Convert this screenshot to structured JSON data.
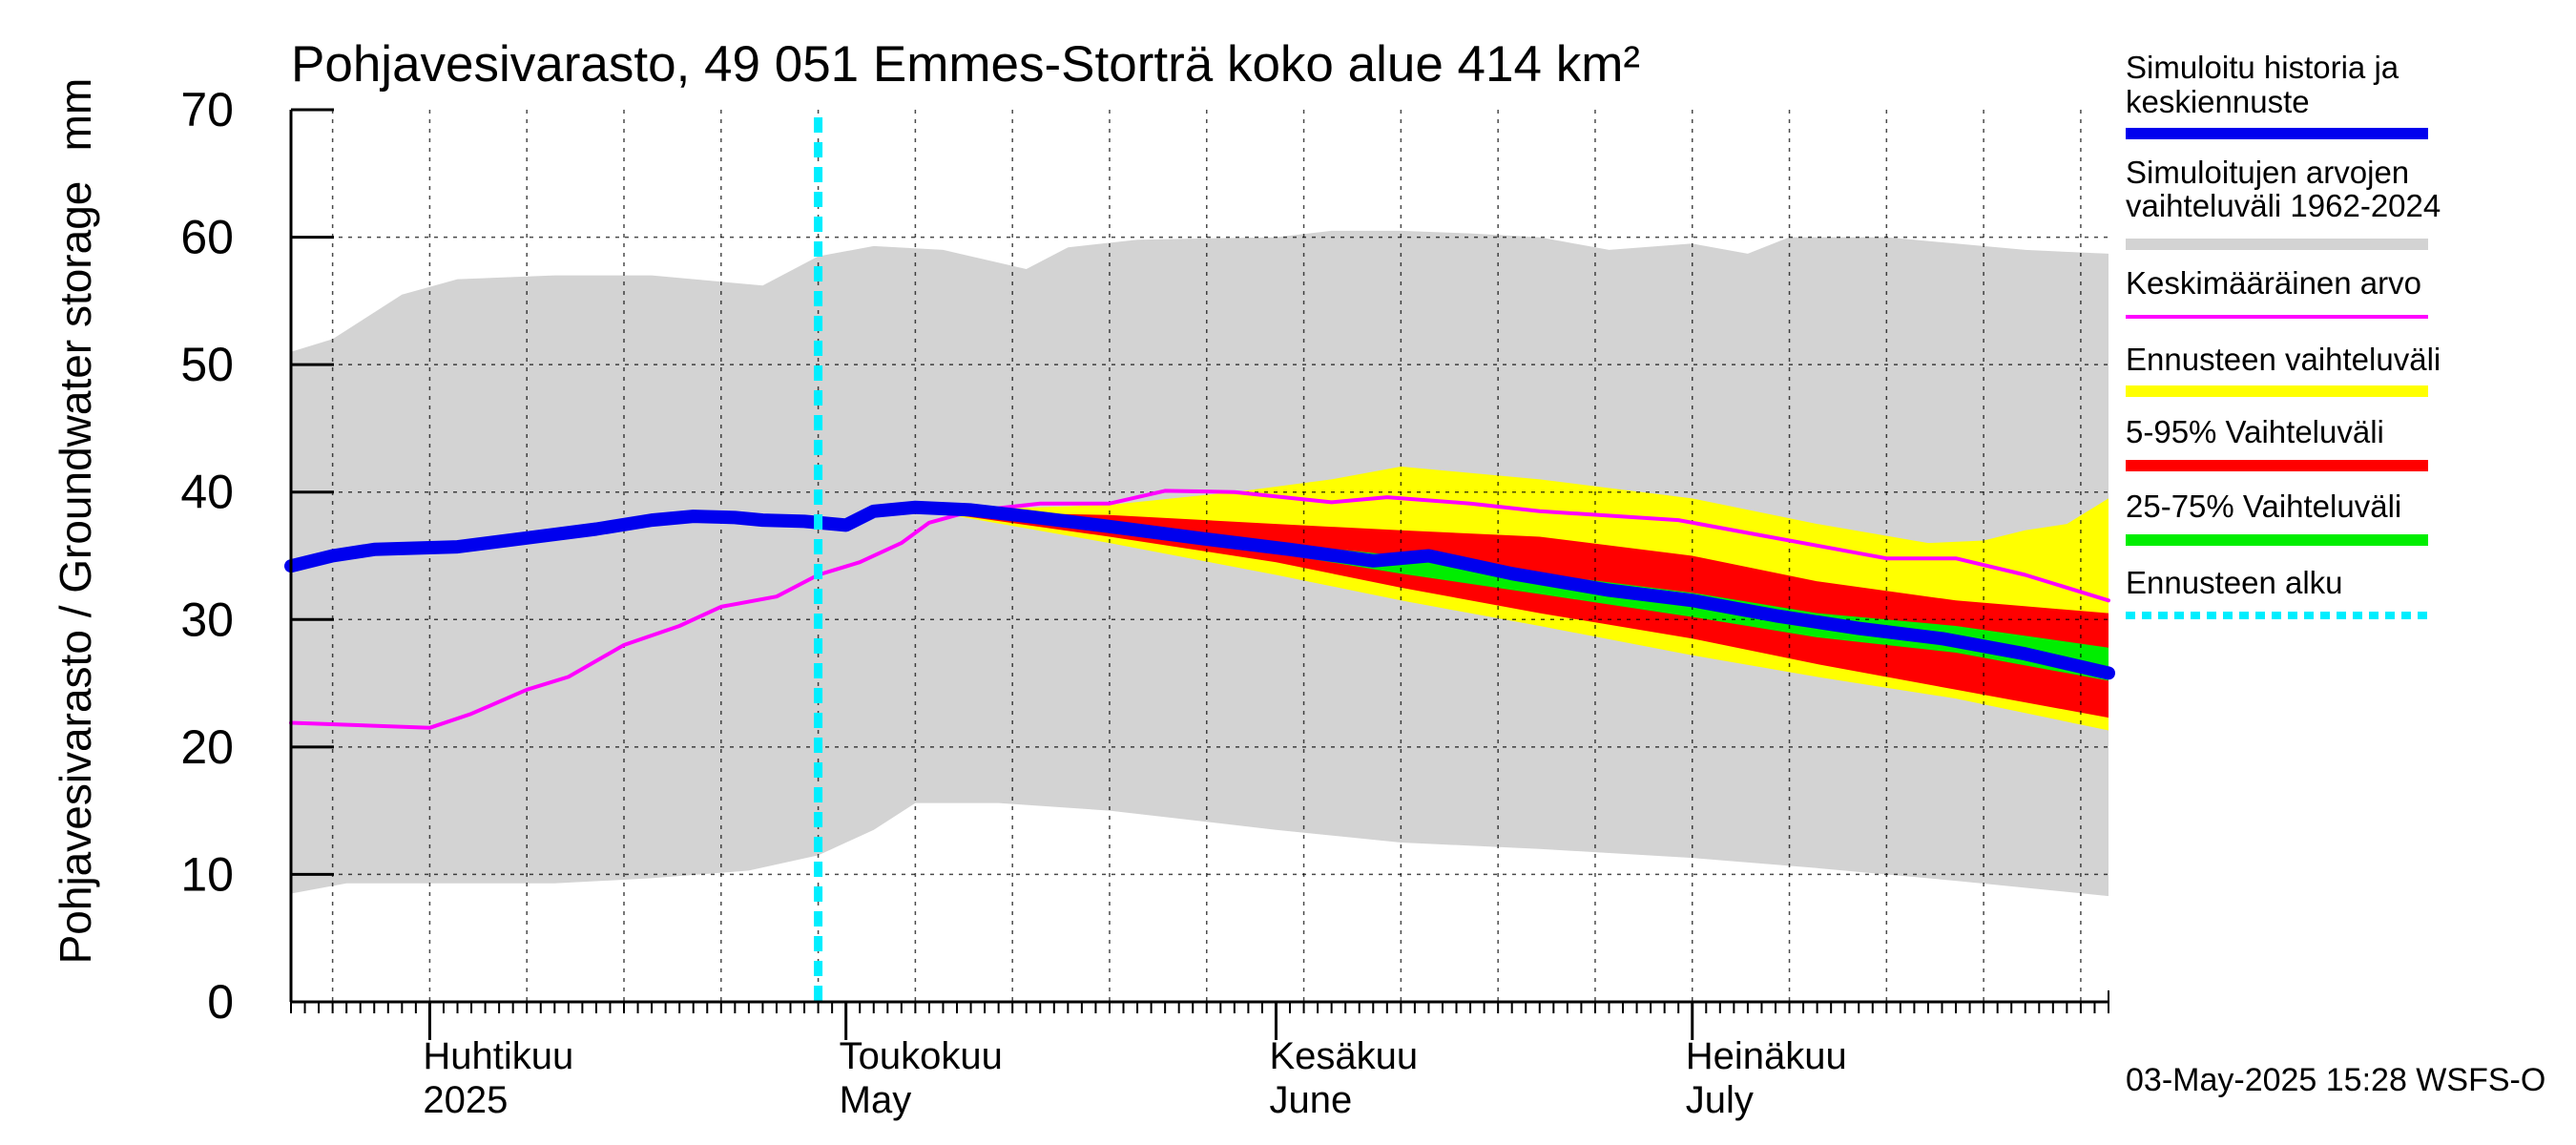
{
  "title": "Pohjavesivarasto, 49 051 Emmes-Storträ koko alue 414 km²",
  "unit_label": "mm",
  "ylabel": "Pohjavesivarasto / Groundwater storage",
  "timestamp": "03-May-2025 15:28 WSFS-O",
  "colors": {
    "history": "#0000ee",
    "range": "#d3d3d3",
    "mean": "#ff00ff",
    "forecast_range": "#ffff00",
    "p5_95": "#ff0000",
    "p25_75": "#00ee00",
    "forecast_start": "#00eeff"
  },
  "legend": [
    {
      "id": "history",
      "label": "Simuloitu historia ja keskiennuste",
      "lines": [
        "Simuloitu historia ja",
        "keskiennuste"
      ],
      "color": "#0000ee"
    },
    {
      "id": "range",
      "label": "Simuloitujen arvojen vaihteluväli 1962-2024",
      "lines": [
        "Simuloitujen arvojen",
        "vaihteluväli 1962-2024"
      ],
      "color": "#d3d3d3"
    },
    {
      "id": "mean",
      "label": "Keskimääräinen arvo",
      "lines": [
        "Keskimääräinen arvo"
      ],
      "color": "#ff00ff"
    },
    {
      "id": "forecast_range",
      "label": "Ennusteen vaihteluväli",
      "lines": [
        "Ennusteen vaihteluväli"
      ],
      "color": "#ffff00"
    },
    {
      "id": "p5_95",
      "label": "5-95% Vaihteluväli",
      "lines": [
        "5-95% Vaihteluväli"
      ],
      "color": "#ff0000"
    },
    {
      "id": "p25_75",
      "label": "25-75% Vaihteluväli",
      "lines": [
        "25-75% Vaihteluväli"
      ],
      "color": "#00ee00"
    },
    {
      "id": "forecast_start",
      "label": "Ennusteen alku",
      "lines": [
        "Ennusteen alku"
      ],
      "color": "#00eeff"
    }
  ],
  "chart_data": {
    "type": "area",
    "title": "Pohjavesivarasto, 49 051 Emmes-Storträ koko alue 414 km²",
    "ylabel": "Pohjavesivarasto / Groundwater storage",
    "unit": "mm",
    "ylim": [
      0,
      70
    ],
    "yticks": [
      0,
      10,
      20,
      30,
      40,
      50,
      60,
      70
    ],
    "xlim": [
      "2025-03-22",
      "2025-07-31"
    ],
    "grid": true,
    "legend_position": "right",
    "month_labels": [
      {
        "date": "2025-04-01",
        "fi": "Huhtikuu",
        "en": "2025"
      },
      {
        "date": "2025-05-01",
        "fi": "Toukokuu",
        "en": "May"
      },
      {
        "date": "2025-06-01",
        "fi": "Kesäkuu",
        "en": "June"
      },
      {
        "date": "2025-07-01",
        "fi": "Heinäkuu",
        "en": "July"
      }
    ],
    "forecast_start": "2025-04-29",
    "range_upper": [
      [
        "2025-03-22",
        51
      ],
      [
        "2025-03-25",
        52
      ],
      [
        "2025-03-30",
        55.5
      ],
      [
        "2025-04-03",
        56.7
      ],
      [
        "2025-04-10",
        57
      ],
      [
        "2025-04-17",
        57
      ],
      [
        "2025-04-22",
        56.5
      ],
      [
        "2025-04-25",
        56.2
      ],
      [
        "2025-04-29",
        58.5
      ],
      [
        "2025-05-03",
        59.3
      ],
      [
        "2025-05-08",
        59
      ],
      [
        "2025-05-14",
        57.5
      ],
      [
        "2025-05-17",
        59.2
      ],
      [
        "2025-05-22",
        59.8
      ],
      [
        "2025-06-01",
        60
      ],
      [
        "2025-06-05",
        60.5
      ],
      [
        "2025-06-10",
        60.5
      ],
      [
        "2025-06-15",
        60.3
      ],
      [
        "2025-06-20",
        60
      ],
      [
        "2025-06-25",
        59
      ],
      [
        "2025-07-01",
        59.5
      ],
      [
        "2025-07-05",
        58.7
      ],
      [
        "2025-07-08",
        60
      ],
      [
        "2025-07-15",
        60
      ],
      [
        "2025-07-20",
        59.5
      ],
      [
        "2025-07-25",
        59
      ],
      [
        "2025-07-31",
        58.7
      ]
    ],
    "range_lower": [
      [
        "2025-03-22",
        8.5
      ],
      [
        "2025-03-26",
        9.3
      ],
      [
        "2025-04-01",
        9.3
      ],
      [
        "2025-04-10",
        9.3
      ],
      [
        "2025-04-17",
        9.7
      ],
      [
        "2025-04-24",
        10.3
      ],
      [
        "2025-04-29",
        11.5
      ],
      [
        "2025-05-03",
        13.5
      ],
      [
        "2025-05-06",
        15.6
      ],
      [
        "2025-05-12",
        15.6
      ],
      [
        "2025-05-20",
        15
      ],
      [
        "2025-06-01",
        13.5
      ],
      [
        "2025-06-10",
        12.5
      ],
      [
        "2025-06-20",
        12
      ],
      [
        "2025-07-01",
        11.3
      ],
      [
        "2025-07-10",
        10.5
      ],
      [
        "2025-07-20",
        9.5
      ],
      [
        "2025-07-31",
        8.3
      ]
    ],
    "history": [
      [
        "2025-03-22",
        34.2
      ],
      [
        "2025-03-25",
        35
      ],
      [
        "2025-03-28",
        35.5
      ],
      [
        "2025-04-03",
        35.7
      ],
      [
        "2025-04-08",
        36.4
      ],
      [
        "2025-04-13",
        37.1
      ],
      [
        "2025-04-17",
        37.8
      ],
      [
        "2025-04-20",
        38.1
      ],
      [
        "2025-04-23",
        38
      ],
      [
        "2025-04-25",
        37.8
      ],
      [
        "2025-04-28",
        37.7
      ],
      [
        "2025-05-01",
        37.4
      ],
      [
        "2025-05-03",
        38.5
      ],
      [
        "2025-05-06",
        38.8
      ],
      [
        "2025-05-10",
        38.6
      ],
      [
        "2025-05-14",
        38.1
      ],
      [
        "2025-05-20",
        37.3
      ],
      [
        "2025-05-27",
        36.3
      ],
      [
        "2025-06-02",
        35.5
      ],
      [
        "2025-06-08",
        34.6
      ],
      [
        "2025-06-12",
        35
      ],
      [
        "2025-06-18",
        33.6
      ],
      [
        "2025-06-25",
        32.3
      ],
      [
        "2025-07-01",
        31.5
      ],
      [
        "2025-07-07",
        30.3
      ],
      [
        "2025-07-13",
        29.3
      ],
      [
        "2025-07-19",
        28.5
      ],
      [
        "2025-07-25",
        27.3
      ],
      [
        "2025-07-31",
        25.8
      ]
    ],
    "mean": [
      [
        "2025-03-22",
        21.9
      ],
      [
        "2025-04-01",
        21.5
      ],
      [
        "2025-04-04",
        22.6
      ],
      [
        "2025-04-08",
        24.5
      ],
      [
        "2025-04-11",
        25.5
      ],
      [
        "2025-04-15",
        28
      ],
      [
        "2025-04-19",
        29.5
      ],
      [
        "2025-04-22",
        31
      ],
      [
        "2025-04-26",
        31.8
      ],
      [
        "2025-04-29",
        33.5
      ],
      [
        "2025-05-02",
        34.5
      ],
      [
        "2025-05-05",
        36
      ],
      [
        "2025-05-07",
        37.6
      ],
      [
        "2025-05-10",
        38.5
      ],
      [
        "2025-05-15",
        39.1
      ],
      [
        "2025-05-20",
        39.1
      ],
      [
        "2025-05-24",
        40.1
      ],
      [
        "2025-05-29",
        40
      ],
      [
        "2025-06-05",
        39.2
      ],
      [
        "2025-06-09",
        39.6
      ],
      [
        "2025-06-15",
        39.1
      ],
      [
        "2025-06-20",
        38.5
      ],
      [
        "2025-06-30",
        37.8
      ],
      [
        "2025-07-05",
        36.8
      ],
      [
        "2025-07-10",
        35.8
      ],
      [
        "2025-07-15",
        34.8
      ],
      [
        "2025-07-20",
        34.8
      ],
      [
        "2025-07-25",
        33.5
      ],
      [
        "2025-07-31",
        31.5
      ]
    ],
    "forecast_range_upper": [
      [
        "2025-05-07",
        38.5
      ],
      [
        "2025-05-20",
        39
      ],
      [
        "2025-05-29",
        40
      ],
      [
        "2025-06-05",
        41
      ],
      [
        "2025-06-10",
        42
      ],
      [
        "2025-06-20",
        41
      ],
      [
        "2025-07-01",
        39.5
      ],
      [
        "2025-07-10",
        37.5
      ],
      [
        "2025-07-18",
        36
      ],
      [
        "2025-07-22",
        36.2
      ],
      [
        "2025-07-25",
        37
      ],
      [
        "2025-07-28",
        37.5
      ],
      [
        "2025-07-31",
        39.5
      ]
    ],
    "forecast_range_lower": [
      [
        "2025-05-07",
        38.5
      ],
      [
        "2025-05-20",
        36
      ],
      [
        "2025-06-01",
        33.5
      ],
      [
        "2025-06-10",
        31.5
      ],
      [
        "2025-06-20",
        29.5
      ],
      [
        "2025-07-01",
        27.2
      ],
      [
        "2025-07-10",
        25.5
      ],
      [
        "2025-07-20",
        23.8
      ],
      [
        "2025-07-31",
        21.3
      ]
    ],
    "p5_95_upper": [
      [
        "2025-05-07",
        38.5
      ],
      [
        "2025-05-20",
        38.2
      ],
      [
        "2025-06-01",
        37.5
      ],
      [
        "2025-06-10",
        37
      ],
      [
        "2025-06-20",
        36.5
      ],
      [
        "2025-07-01",
        35
      ],
      [
        "2025-07-10",
        33
      ],
      [
        "2025-07-20",
        31.5
      ],
      [
        "2025-07-31",
        30.5
      ]
    ],
    "p5_95_lower": [
      [
        "2025-05-07",
        38.5
      ],
      [
        "2025-05-20",
        36.5
      ],
      [
        "2025-06-01",
        34.5
      ],
      [
        "2025-06-10",
        32.5
      ],
      [
        "2025-06-20",
        30.5
      ],
      [
        "2025-07-01",
        28.5
      ],
      [
        "2025-07-10",
        26.5
      ],
      [
        "2025-07-20",
        24.5
      ],
      [
        "2025-07-31",
        22.3
      ]
    ],
    "p25_75_upper": [
      [
        "2025-05-07",
        38.5
      ],
      [
        "2025-05-20",
        37.2
      ],
      [
        "2025-06-01",
        36
      ],
      [
        "2025-06-10",
        35
      ],
      [
        "2025-06-20",
        33.6
      ],
      [
        "2025-07-01",
        32.1
      ],
      [
        "2025-07-10",
        30.5
      ],
      [
        "2025-07-20",
        29.5
      ],
      [
        "2025-07-31",
        27.8
      ]
    ],
    "p25_75_lower": [
      [
        "2025-05-07",
        38.5
      ],
      [
        "2025-05-20",
        37
      ],
      [
        "2025-06-01",
        35.2
      ],
      [
        "2025-06-10",
        33.6
      ],
      [
        "2025-06-20",
        32
      ],
      [
        "2025-07-01",
        30.2
      ],
      [
        "2025-07-10",
        28.6
      ],
      [
        "2025-07-20",
        27.4
      ],
      [
        "2025-07-31",
        25.2
      ]
    ]
  }
}
